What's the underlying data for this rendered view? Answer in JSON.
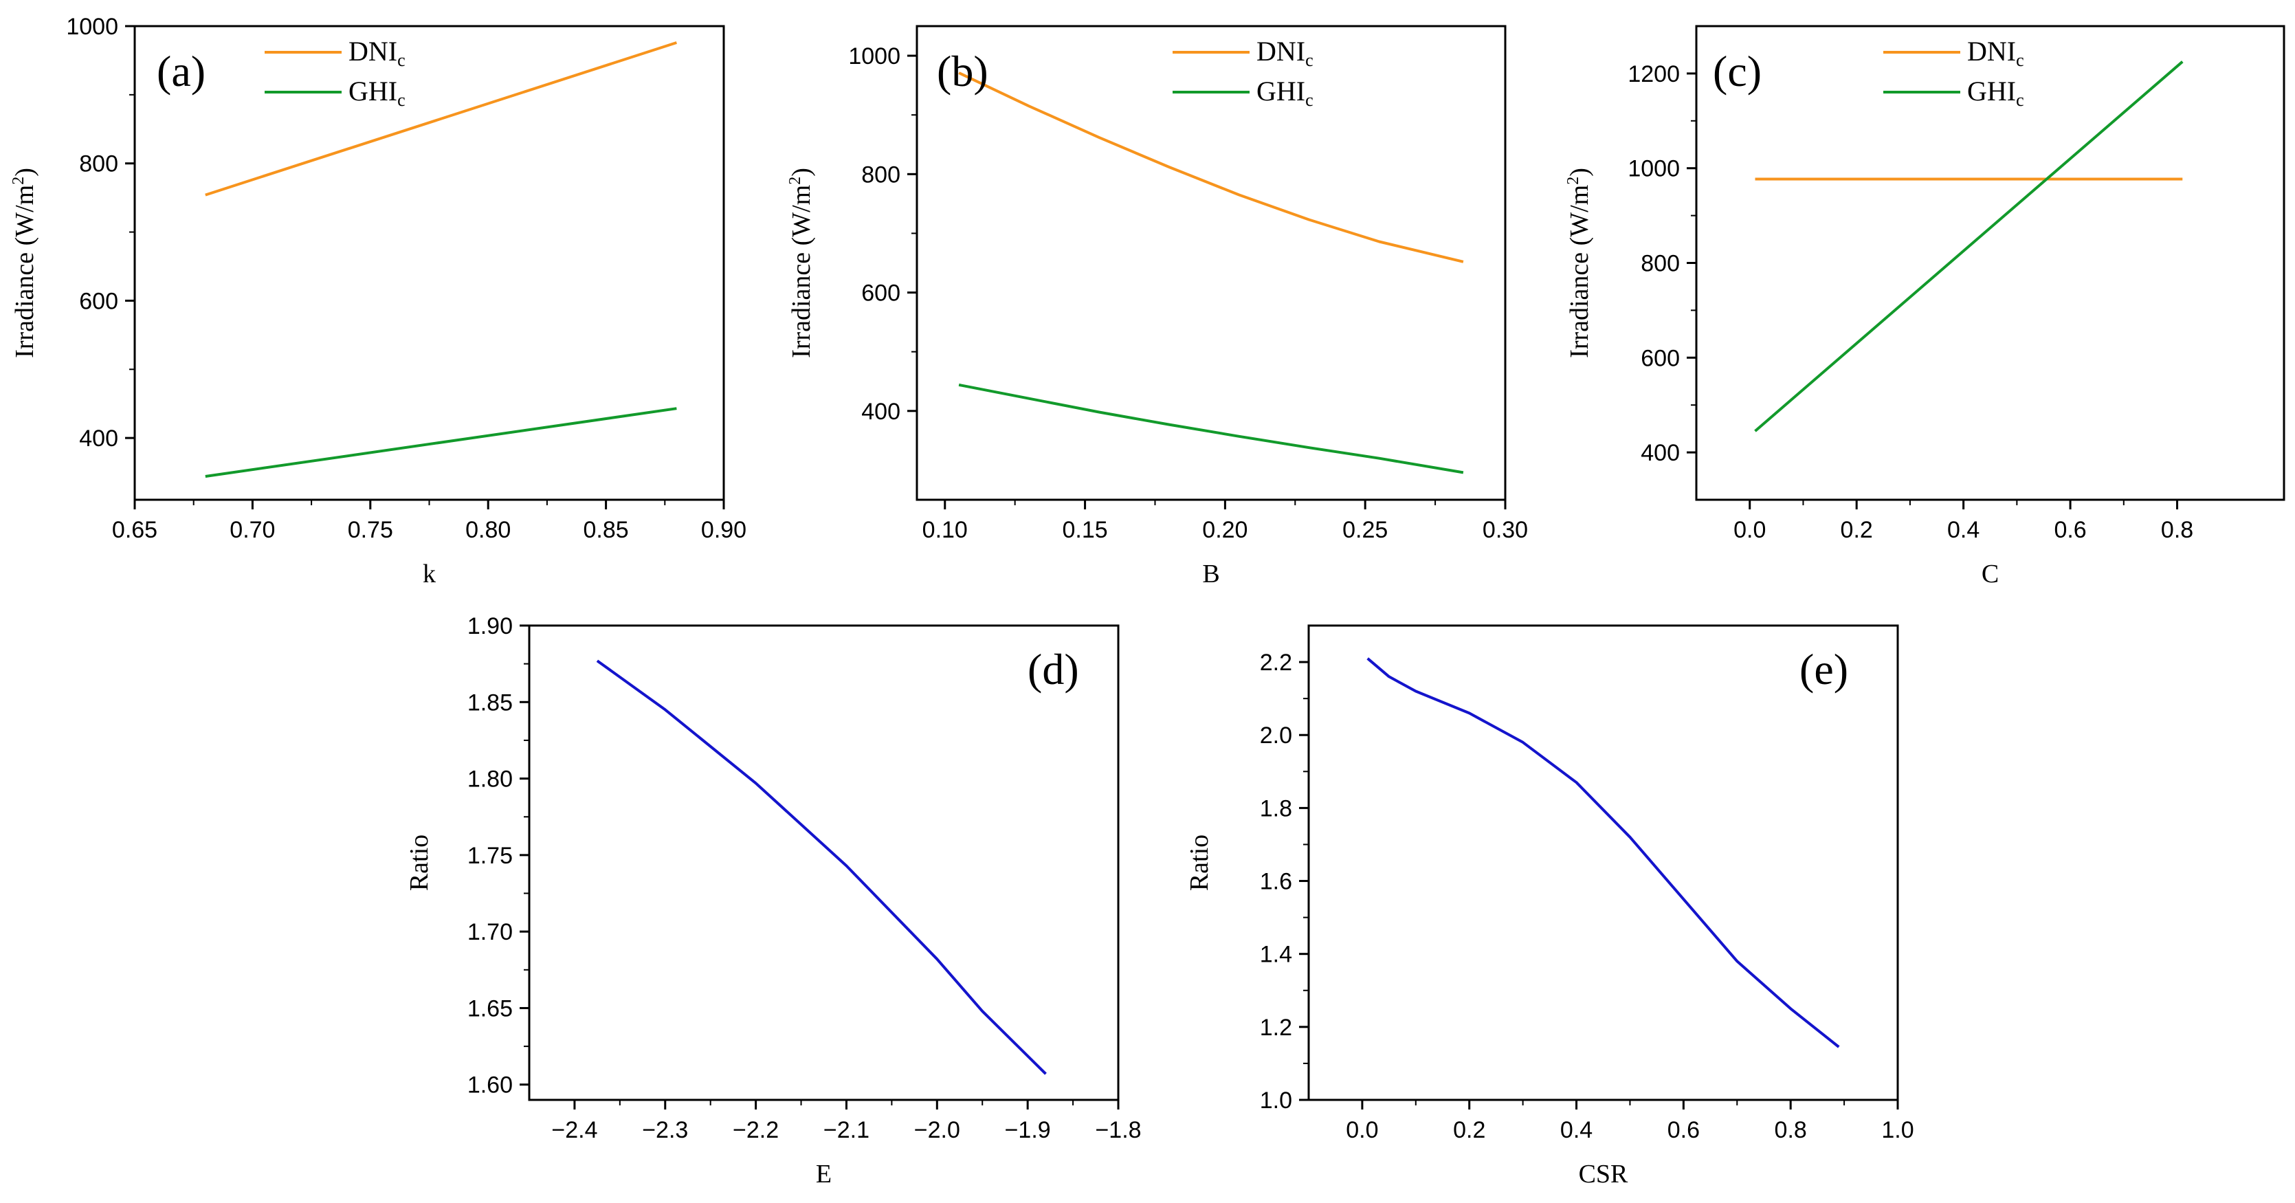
{
  "colors": {
    "dni": "#f7941d",
    "ghi": "#129a2b",
    "ratio": "#1414cc",
    "axis": "#000000"
  },
  "chart_data": [
    {
      "id": "a",
      "type": "line",
      "panel_label": "(a)",
      "xlabel": "k",
      "ylabel": "Irradiance (W/m",
      "ylabel_sup": "2",
      "ylabel_end": ")",
      "xlim": [
        0.65,
        0.9
      ],
      "ylim": [
        310,
        1000
      ],
      "xticks": [
        0.65,
        0.7,
        0.75,
        0.8,
        0.85,
        0.9
      ],
      "xtick_labels": [
        "0.65",
        "0.70",
        "0.75",
        "0.80",
        "0.85",
        "0.90"
      ],
      "yticks": [
        400,
        600,
        800,
        1000
      ],
      "ytick_labels": [
        "400",
        "600",
        "800",
        "1000"
      ],
      "series": [
        {
          "name": "DNI",
          "name_sub": "c",
          "color_key": "dni",
          "x": [
            0.68,
            0.88
          ],
          "y": [
            754,
            976
          ]
        },
        {
          "name": "GHI",
          "name_sub": "c",
          "color_key": "ghi",
          "x": [
            0.68,
            0.88
          ],
          "y": [
            344,
            443
          ]
        }
      ]
    },
    {
      "id": "b",
      "type": "line",
      "panel_label": "(b)",
      "xlabel": "B",
      "ylabel": "Irradiance (W/m",
      "ylabel_sup": "2",
      "ylabel_end": ")",
      "xlim": [
        0.09,
        0.3
      ],
      "ylim": [
        250,
        1050
      ],
      "xticks": [
        0.1,
        0.15,
        0.2,
        0.25,
        0.3
      ],
      "xtick_labels": [
        "0.10",
        "0.15",
        "0.20",
        "0.25",
        "0.30"
      ],
      "yticks": [
        400,
        600,
        800,
        1000
      ],
      "ytick_labels": [
        "400",
        "600",
        "800",
        "1000"
      ],
      "series": [
        {
          "name": "DNI",
          "name_sub": "c",
          "color_key": "dni",
          "x": [
            0.105,
            0.13,
            0.155,
            0.18,
            0.205,
            0.23,
            0.255,
            0.285
          ],
          "y": [
            971,
            915,
            862,
            812,
            765,
            723,
            686,
            652
          ]
        },
        {
          "name": "GHI",
          "name_sub": "c",
          "color_key": "ghi",
          "x": [
            0.105,
            0.13,
            0.155,
            0.18,
            0.205,
            0.23,
            0.255,
            0.285
          ],
          "y": [
            444,
            421,
            398,
            377,
            357,
            338,
            320,
            296
          ]
        }
      ]
    },
    {
      "id": "c",
      "type": "line",
      "panel_label": "(c)",
      "xlabel": "C",
      "ylabel": "Irradiance (W/m",
      "ylabel_sup": "2",
      "ylabel_end": ")",
      "xlim": [
        -0.1,
        1.0
      ],
      "ylim": [
        300,
        1300
      ],
      "xticks": [
        0.0,
        0.2,
        0.4,
        0.6,
        0.8
      ],
      "xtick_labels": [
        "0.0",
        "0.2",
        "0.4",
        "0.6",
        "0.8"
      ],
      "yticks": [
        400,
        600,
        800,
        1000,
        1200
      ],
      "ytick_labels": [
        "400",
        "600",
        "800",
        "1000",
        "1200"
      ],
      "series": [
        {
          "name": "DNI",
          "name_sub": "c",
          "color_key": "dni",
          "x": [
            0.01,
            0.81
          ],
          "y": [
            977,
            977
          ]
        },
        {
          "name": "GHI",
          "name_sub": "c",
          "color_key": "ghi",
          "x": [
            0.01,
            0.81
          ],
          "y": [
            445,
            1225
          ]
        }
      ]
    },
    {
      "id": "d",
      "type": "line",
      "panel_label": "(d)",
      "xlabel": "E",
      "ylabel": "Ratio",
      "xlim": [
        -2.45,
        -1.8
      ],
      "ylim": [
        1.59,
        1.9
      ],
      "xticks": [
        -2.4,
        -2.3,
        -2.2,
        -2.1,
        -2.0,
        -1.9,
        -1.8
      ],
      "xtick_labels": [
        "−2.4",
        "−2.3",
        "−2.2",
        "−2.1",
        "−2.0",
        "−1.9",
        "−1.8"
      ],
      "yticks": [
        1.6,
        1.65,
        1.7,
        1.75,
        1.8,
        1.85,
        1.9
      ],
      "ytick_labels": [
        "1.60",
        "1.65",
        "1.70",
        "1.75",
        "1.80",
        "1.85",
        "1.90"
      ],
      "series": [
        {
          "name": "Ratio",
          "color_key": "ratio",
          "x": [
            -2.375,
            -2.3,
            -2.2,
            -2.1,
            -2.0,
            -1.95,
            -1.88
          ],
          "y": [
            1.877,
            1.845,
            1.797,
            1.743,
            1.682,
            1.648,
            1.607
          ]
        }
      ]
    },
    {
      "id": "e",
      "type": "line",
      "panel_label": "(e)",
      "xlabel": "CSR",
      "ylabel": "Ratio",
      "xlim": [
        -0.1,
        1.0
      ],
      "ylim": [
        1.0,
        2.3
      ],
      "xticks": [
        0.0,
        0.2,
        0.4,
        0.6,
        0.8,
        1.0
      ],
      "xtick_labels": [
        "0.0",
        "0.2",
        "0.4",
        "0.6",
        "0.8",
        "1.0"
      ],
      "yticks": [
        1.0,
        1.2,
        1.4,
        1.6,
        1.8,
        2.0,
        2.2
      ],
      "ytick_labels": [
        "1.0",
        "1.2",
        "1.4",
        "1.6",
        "1.8",
        "2.0",
        "2.2"
      ],
      "series": [
        {
          "name": "Ratio",
          "color_key": "ratio",
          "x": [
            0.01,
            0.05,
            0.1,
            0.2,
            0.3,
            0.4,
            0.5,
            0.6,
            0.7,
            0.8,
            0.89
          ],
          "y": [
            2.21,
            2.16,
            2.12,
            2.06,
            1.98,
            1.87,
            1.72,
            1.55,
            1.38,
            1.25,
            1.145
          ]
        }
      ]
    }
  ]
}
